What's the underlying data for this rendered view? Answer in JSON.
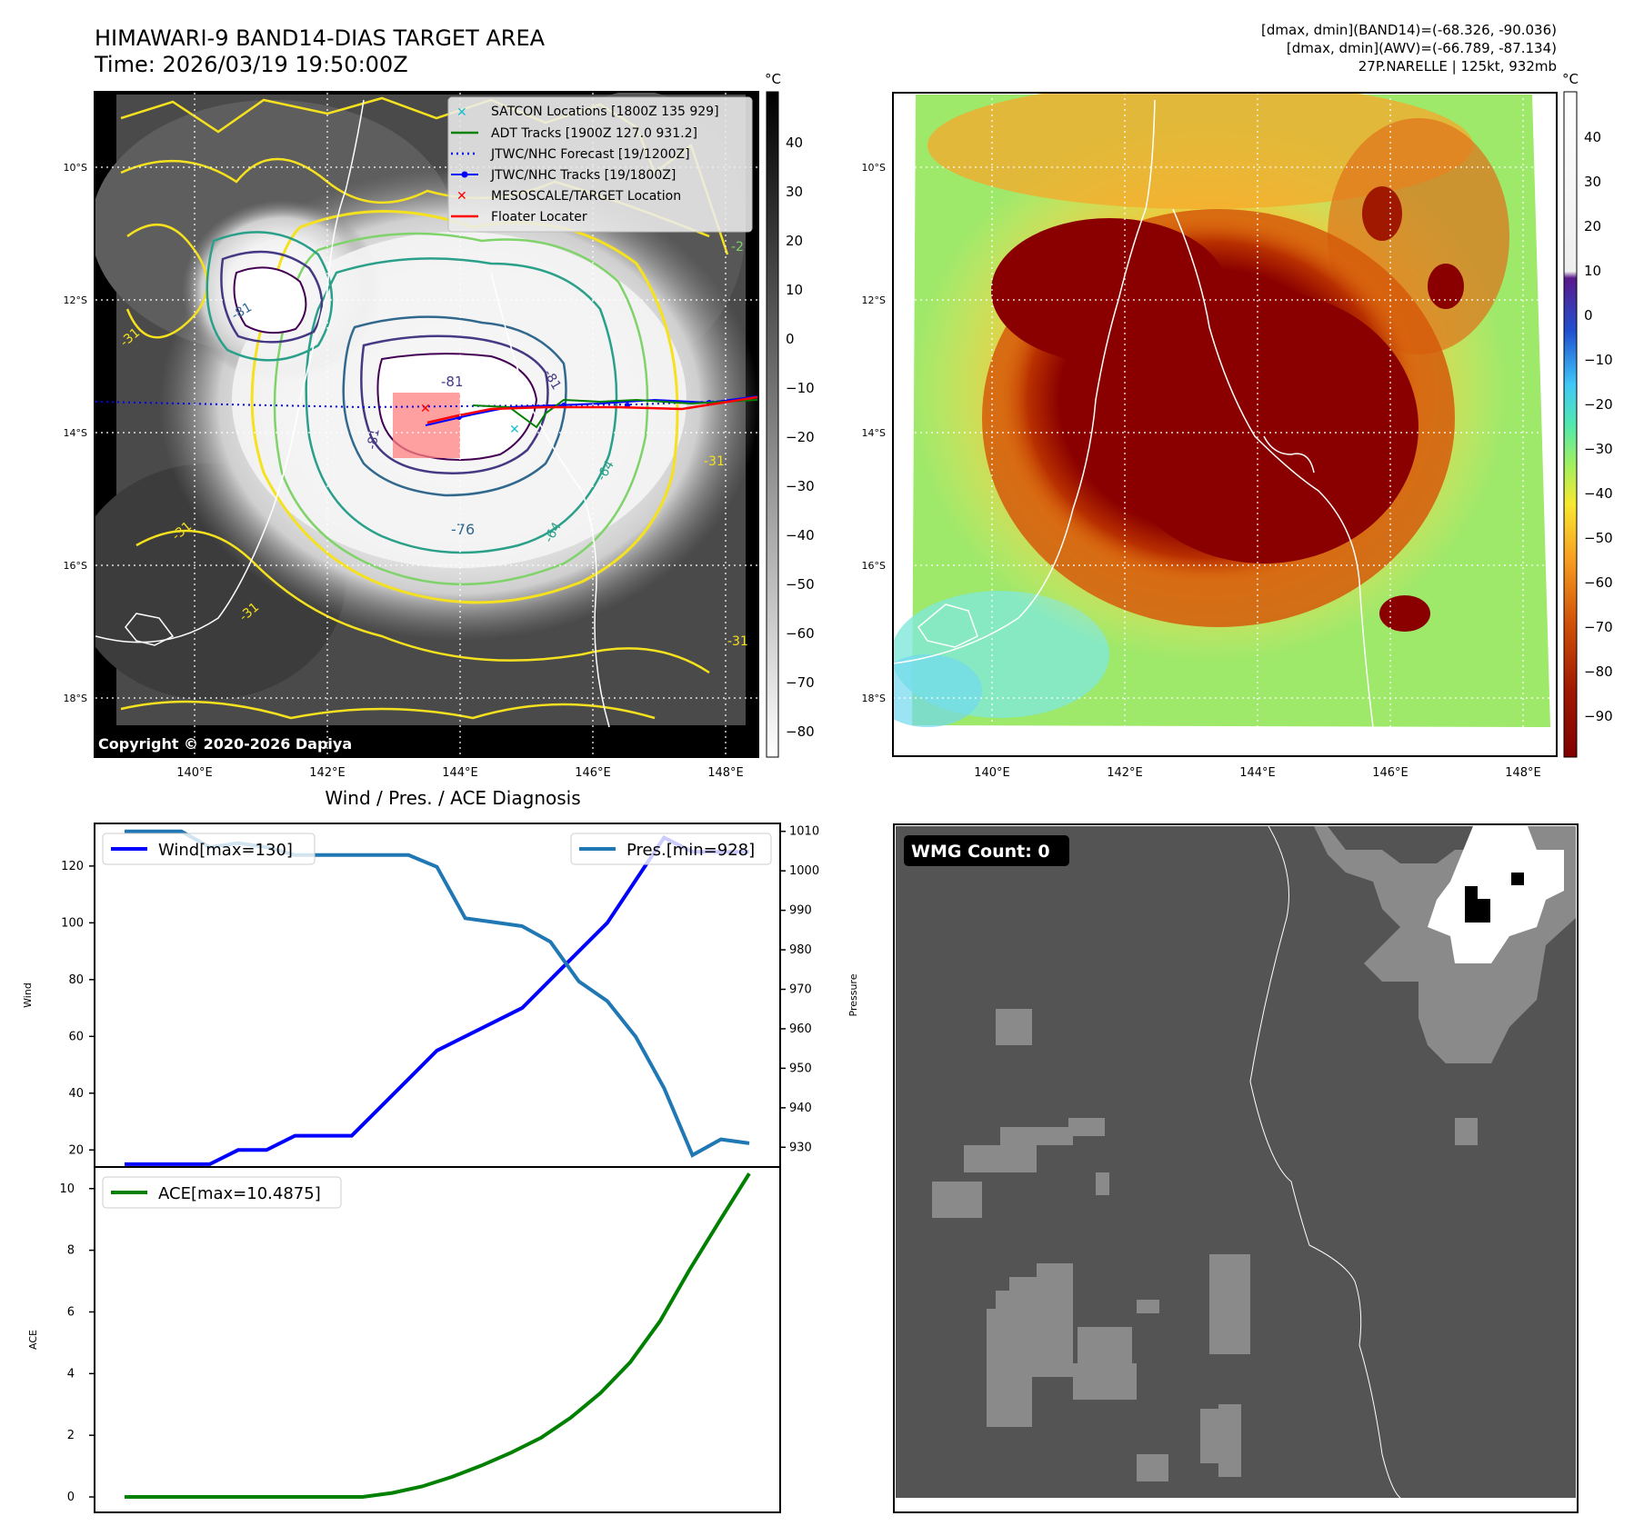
{
  "header": {
    "title_line1": "HIMAWARI-9 BAND14-DIAS TARGET AREA",
    "title_line2": "Time: 2026/03/19 19:50:00Z",
    "stats_line1": "[dmax, dmin](BAND14)=(-68.326, -90.036)",
    "stats_line2": "[dmax, dmin](AWV)=(-66.789, -87.134)",
    "stats_line3": "27P.NARELLE | 125kt, 932mb"
  },
  "map_left": {
    "copyright": "Copyright © 2020-2026 Dapiya",
    "lat_labels": [
      "10°S",
      "12°S",
      "14°S",
      "16°S",
      "18°S"
    ],
    "lon_labels": [
      "140°E",
      "142°E",
      "144°E",
      "146°E",
      "148°E"
    ],
    "contour_labels": [
      "-81",
      "-81",
      "-81",
      "-81",
      "-76",
      "-64",
      "-64",
      "-31",
      "-31",
      "-31",
      "-31",
      "-31",
      "-2"
    ],
    "legend": [
      {
        "label": "SATCON Locations [1800Z 135 929]",
        "marker": "x",
        "color": "#17becf"
      },
      {
        "label": "ADT Tracks [1900Z 127.0 931.2]",
        "marker": "line",
        "color": "#008000"
      },
      {
        "label": "JTWC/NHC Forecast [19/1200Z]",
        "marker": "dotted",
        "color": "#0000ff"
      },
      {
        "label": "JTWC/NHC Tracks [19/1800Z]",
        "marker": "line-dot",
        "color": "#0000ff"
      },
      {
        "label": "MESOSCALE/TARGET Location",
        "marker": "x",
        "color": "#ff0000"
      },
      {
        "label": "Floater Locater",
        "marker": "line",
        "color": "#ff0000"
      }
    ],
    "colorbar": {
      "unit": "°C",
      "ticks": [
        "40",
        "30",
        "20",
        "10",
        "0",
        "−10",
        "−20",
        "−30",
        "−40",
        "−50",
        "−60",
        "−70",
        "−80"
      ]
    }
  },
  "map_right": {
    "lat_labels": [
      "10°S",
      "12°S",
      "14°S",
      "16°S",
      "18°S"
    ],
    "lon_labels": [
      "140°E",
      "142°E",
      "144°E",
      "146°E",
      "148°E"
    ],
    "colorbar": {
      "unit": "°C",
      "ticks": [
        "40",
        "30",
        "20",
        "10",
        "0",
        "−10",
        "−20",
        "−30",
        "−40",
        "−50",
        "−60",
        "−70",
        "−80",
        "−90"
      ]
    }
  },
  "chart_data": [
    {
      "type": "line",
      "title": "Wind / Pres. / ACE Diagnosis",
      "ylabel": "Wind",
      "y2label": "Pressure",
      "ylim": [
        14,
        135
      ],
      "y2lim": [
        925,
        1012
      ],
      "yticks": [
        20,
        40,
        60,
        80,
        100,
        120
      ],
      "y2ticks": [
        930,
        940,
        950,
        960,
        970,
        980,
        990,
        1000,
        1010
      ],
      "series": [
        {
          "name": "Wind",
          "legend": "Wind[max=130]",
          "color": "#0000ff",
          "values": [
            15,
            15,
            15,
            15,
            20,
            20,
            25,
            25,
            25,
            35,
            45,
            55,
            60,
            65,
            70,
            80,
            90,
            100,
            115,
            130,
            125,
            125,
            125
          ]
        },
        {
          "name": "Pres.",
          "legend": "Pres.[min=928]",
          "color": "#1f77b4",
          "values": [
            1010,
            1010,
            1010,
            1006,
            1007,
            1006,
            1004,
            1004,
            1004,
            1004,
            1004,
            1001,
            988,
            987,
            986,
            982,
            972,
            967,
            958,
            945,
            928,
            932,
            931
          ]
        }
      ]
    },
    {
      "type": "line",
      "ylabel": "ACE",
      "ylim": [
        -0.5,
        10.7
      ],
      "yticks": [
        0,
        2,
        4,
        6,
        8,
        10
      ],
      "series": [
        {
          "name": "ACE",
          "legend": "ACE[max=10.4875]",
          "color": "#008000",
          "values": [
            0,
            0,
            0,
            0,
            0,
            0,
            0,
            0,
            0,
            0.13,
            0.34,
            0.65,
            1.02,
            1.44,
            1.92,
            2.57,
            3.37,
            4.37,
            5.7,
            7.38,
            8.95,
            10.4875
          ]
        }
      ]
    }
  ],
  "wmg": {
    "label": "WMG Count: 0"
  }
}
